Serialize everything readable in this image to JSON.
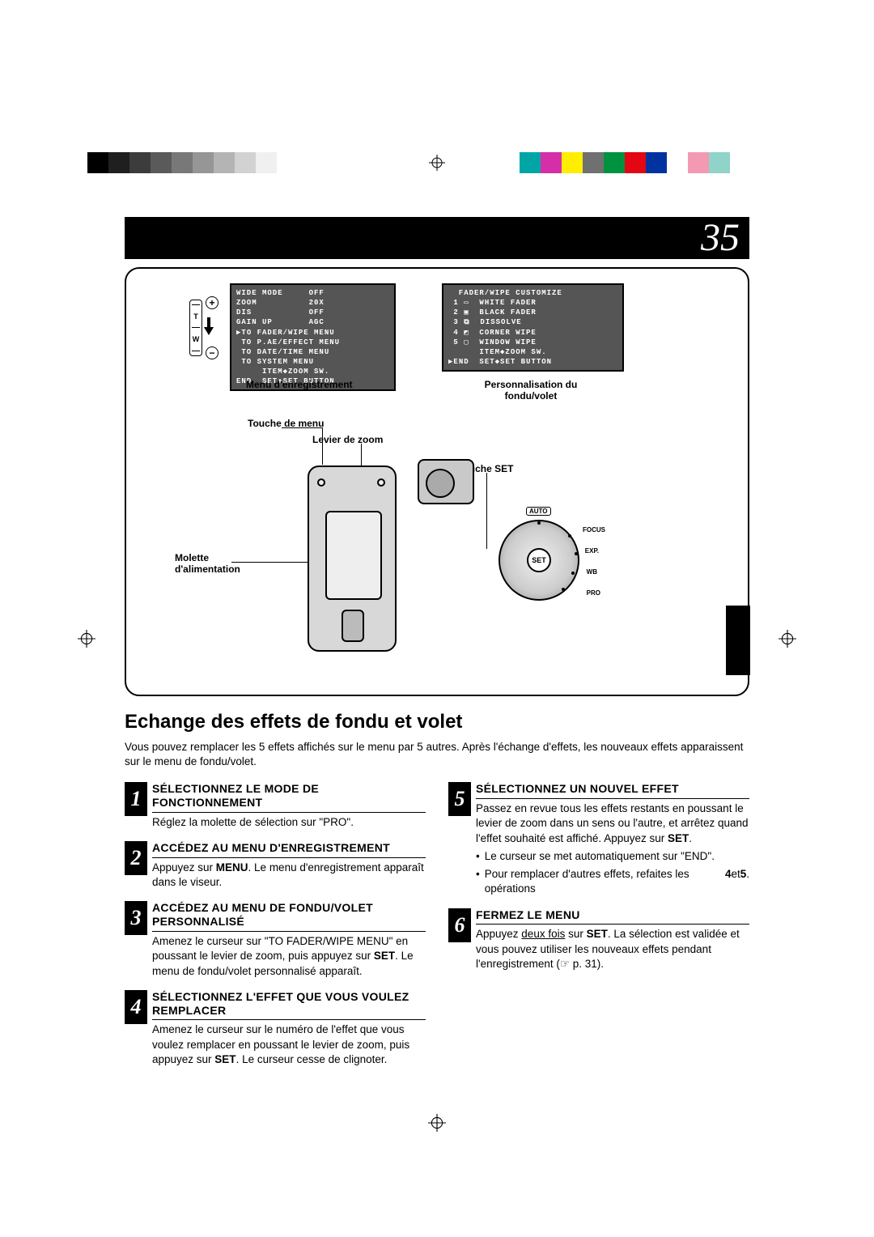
{
  "page_number": "35",
  "registration": {
    "grays": [
      "#000000",
      "#1f1f1f",
      "#3c3c3c",
      "#5a5a5a",
      "#787878",
      "#969696",
      "#b4b4b4",
      "#d2d2d2",
      "#f0f0f0",
      "#ffffff"
    ],
    "colors": [
      "#00a6a6",
      "#d62ea8",
      "#ffee00",
      "#707070",
      "#00923f",
      "#e30613",
      "#0033a0",
      "#ffffff",
      "#f39ab2",
      "#90d3c8"
    ]
  },
  "diagram": {
    "menu_left": {
      "rows": [
        "WIDE MODE     OFF",
        "ZOOM          20X",
        "DIS           OFF",
        "GAIN UP       AGC",
        "▶TO FADER/WIPE MENU",
        " TO P.AE/EFFECT MENU",
        " TO DATE/TIME MENU",
        " TO SYSTEM MENU",
        "",
        "     ITEM◆ZOOM SW.",
        "END  SET◆SET BUTTON"
      ],
      "caption": "Menu d'enregistrement"
    },
    "menu_right": {
      "rows": [
        "  FADER/WIPE CUSTOMIZE",
        "",
        " 1 ▭  WHITE FADER",
        " 2 ▣  BLACK FADER",
        " 3 ⧉  DISSOLVE",
        " 4 ◩  CORNER WIPE",
        " 5 ▢  WINDOW WIPE",
        "",
        "      ITEM◆ZOOM SW.",
        "▶END  SET◆SET BUTTON"
      ],
      "caption": "Personnalisation du fondu/volet"
    },
    "labels": {
      "touche_menu": "Touche de menu",
      "levier_zoom": "Levier de zoom",
      "touche_set": "Touche SET",
      "molette": "Molette d'alimentation"
    },
    "tw": {
      "t": "T",
      "w": "W",
      "plus": "+",
      "minus": "−"
    },
    "dial": {
      "auto": "AUTO",
      "set": "SET",
      "ticks": [
        "FOCUS",
        "EXP.",
        "WB",
        "PRO"
      ]
    }
  },
  "section_title": "Echange des effets de fondu et volet",
  "intro": "Vous pouvez remplacer les 5 effets affichés sur le menu par 5 autres. Après l'échange d'effets, les nouveaux effets apparaissent sur le menu de fondu/volet.",
  "steps": [
    {
      "n": "1",
      "title": "SÉLECTIONNEZ LE MODE DE FONCTIONNEMENT",
      "body": "Réglez la molette de sélection sur \"PRO\"."
    },
    {
      "n": "2",
      "title": "ACCÉDEZ AU MENU D'ENREGISTREMENT",
      "body": "Appuyez sur <b>MENU</b>. Le menu d'enregistrement apparaît dans le viseur."
    },
    {
      "n": "3",
      "title": "ACCÉDEZ AU MENU DE FONDU/VOLET PERSONNALISÉ",
      "body": "Amenez le curseur sur \"TO FADER/WIPE MENU\" en poussant le levier de zoom, puis appuyez sur <b>SET</b>. Le menu de fondu/volet personnalisé apparaît."
    },
    {
      "n": "4",
      "title": "SÉLECTIONNEZ L'EFFET QUE VOUS VOULEZ REMPLACER",
      "body": "Amenez le curseur sur le numéro de l'effet que vous voulez remplacer en poussant le levier de zoom, puis appuyez sur <b>SET</b>. Le curseur cesse de clignoter."
    },
    {
      "n": "5",
      "title": "SÉLECTIONNEZ UN NOUVEL EFFET",
      "body": "Passez en revue tous les effets restants en poussant le levier de zoom dans un sens ou l'autre, et arrêtez quand l'effet souhaité est affiché. Appuyez sur <b>SET</b>.",
      "bullets": [
        "Le curseur se met automatiquement sur \"END\".",
        "Pour remplacer d'autres effets, refaites les opérations <b>4</b> et <b>5</b>."
      ]
    },
    {
      "n": "6",
      "title": "FERMEZ LE MENU",
      "body": "Appuyez <span class='underline'>deux fois</span> sur <b>SET</b>. La sélection est validée et vous pouvez utiliser les nouveaux effets pendant l'enregistrement (☞ p. 31)."
    }
  ]
}
